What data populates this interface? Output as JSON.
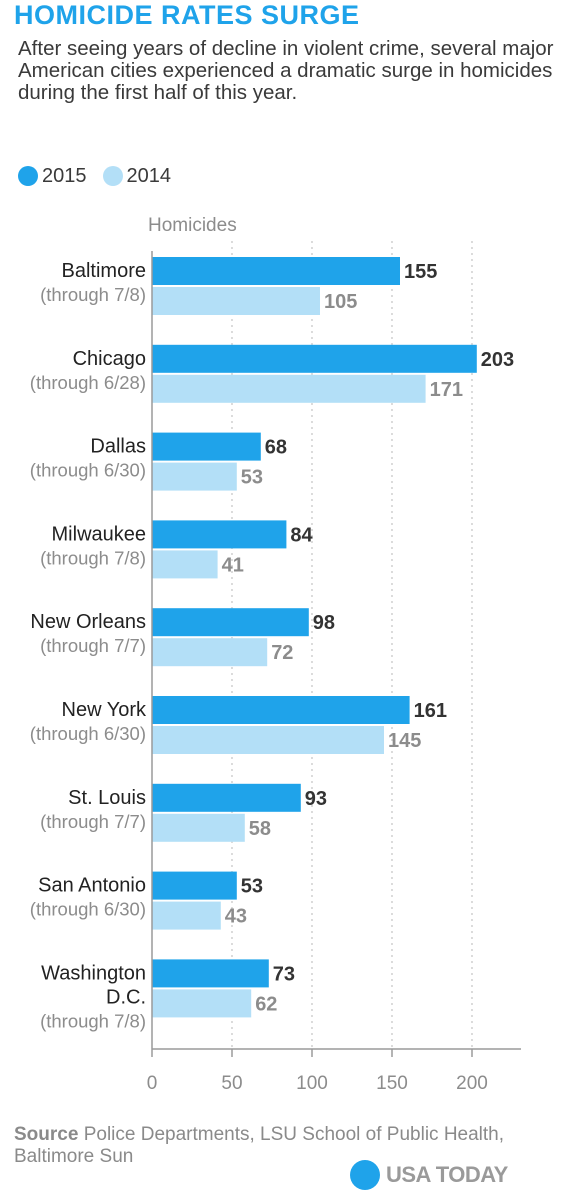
{
  "header": {
    "title": "HOMICIDE RATES SURGE",
    "subtitle": "After seeing years of decline in violent crime, several major American cities experienced a dramatic surge in homicides during the first half of this year."
  },
  "legend": {
    "items": [
      {
        "label": "2015",
        "color": "#1fa3ea"
      },
      {
        "label": "2014",
        "color": "#b3dff7"
      }
    ]
  },
  "chart_data": {
    "type": "bar",
    "orientation": "horizontal",
    "ylabel": "Homicides",
    "categories": [
      {
        "name": "Baltimore",
        "note": "(through 7/8)"
      },
      {
        "name": "Chicago",
        "note": "(through 6/28)"
      },
      {
        "name": "Dallas",
        "note": "(through 6/30)"
      },
      {
        "name": "Milwaukee",
        "note": "(through 7/8)"
      },
      {
        "name": "New Orleans",
        "note": "(through 7/7)"
      },
      {
        "name": "New York",
        "note": "(through 6/30)"
      },
      {
        "name": "St. Louis",
        "note": "(through 7/7)"
      },
      {
        "name": "San Antonio",
        "note": "(through 6/30)"
      },
      {
        "name": "Washington D.C.",
        "note": "(through 7/8)"
      }
    ],
    "series": [
      {
        "name": "2015",
        "color": "#1fa3ea",
        "label_color": "#333333",
        "values": [
          155,
          203,
          68,
          84,
          98,
          161,
          93,
          53,
          73
        ]
      },
      {
        "name": "2014",
        "color": "#b3dff7",
        "label_color": "#8c8c8c",
        "values": [
          105,
          171,
          53,
          41,
          72,
          145,
          58,
          43,
          62
        ]
      }
    ],
    "xlim": [
      0,
      230
    ],
    "xticks": [
      0,
      50,
      100,
      150,
      200
    ],
    "grid": true
  },
  "footer": {
    "source_label": "Source",
    "source_text": "Police Departments, LSU School of Public Health, Baltimore Sun",
    "logo_text": "USA TODAY"
  }
}
